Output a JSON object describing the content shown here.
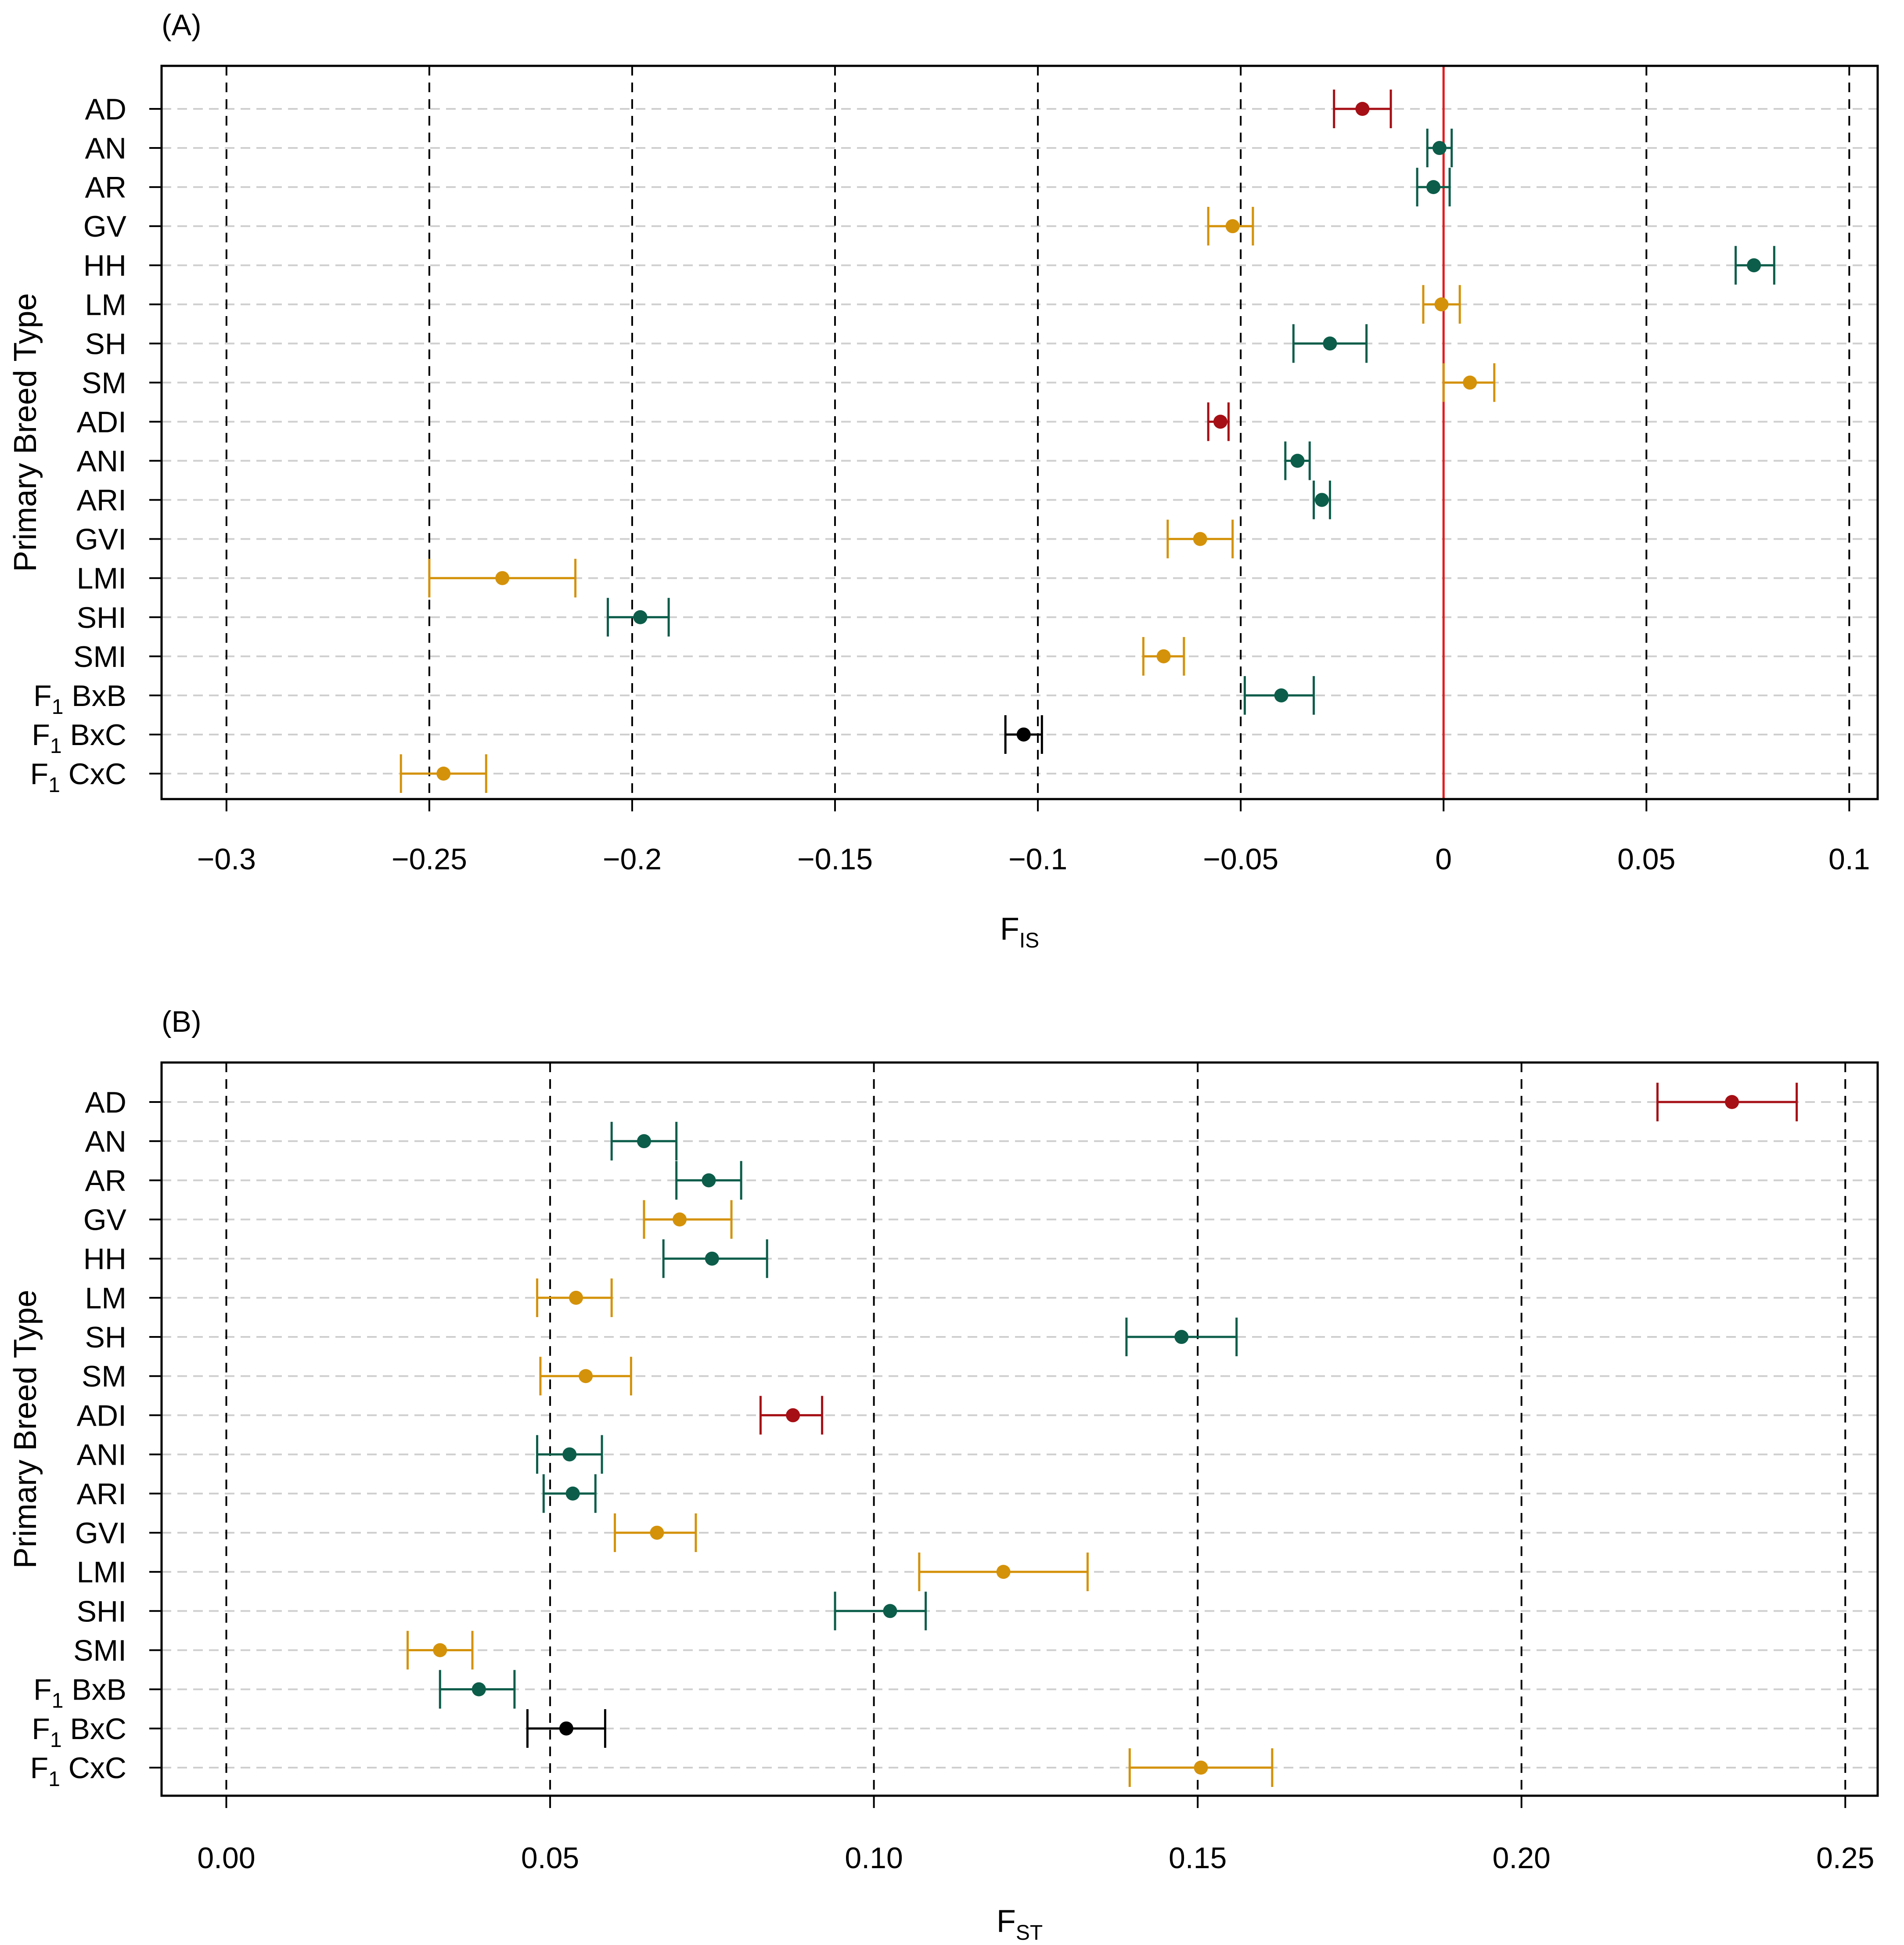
{
  "colors": {
    "red": "#A50F15",
    "green": "#0C5D4A",
    "orange": "#D4920A",
    "black": "#000000",
    "zero_line": "#E31A1C"
  },
  "chart_data": [
    {
      "type": "scatter",
      "panel_label": "(A)",
      "title": "",
      "xlabel": "F",
      "xlabel_sub": "IS",
      "ylabel": "Primary Breed Type",
      "xlim": [
        -0.316,
        0.107
      ],
      "xticks": [
        -0.3,
        -0.25,
        -0.2,
        -0.15,
        -0.1,
        -0.05,
        0,
        0.05,
        0.1
      ],
      "xtick_labels": [
        "−0.3",
        "−0.25",
        "−0.2",
        "−0.15",
        "−0.1",
        "−0.05",
        "0",
        "0.05",
        "0.1"
      ],
      "vertical_gridlines": "dashed at each tick",
      "horizontal_gridlines": "dashed light grey at each category",
      "reference_line": {
        "x": 0,
        "color": "red"
      },
      "points": [
        {
          "label": "AD",
          "sub": "",
          "rest": "",
          "x": -0.02,
          "lo": -0.027,
          "hi": -0.013,
          "group": "red"
        },
        {
          "label": "AN",
          "sub": "",
          "rest": "",
          "x": -0.001,
          "lo": -0.004,
          "hi": 0.002,
          "group": "green"
        },
        {
          "label": "AR",
          "sub": "",
          "rest": "",
          "x": -0.0025,
          "lo": -0.0065,
          "hi": 0.0015,
          "group": "green"
        },
        {
          "label": "GV",
          "sub": "",
          "rest": "",
          "x": -0.052,
          "lo": -0.058,
          "hi": -0.047,
          "group": "orange"
        },
        {
          "label": "HH",
          "sub": "",
          "rest": "",
          "x": 0.0765,
          "lo": 0.072,
          "hi": 0.0815,
          "group": "green"
        },
        {
          "label": "LM",
          "sub": "",
          "rest": "",
          "x": -0.0005,
          "lo": -0.005,
          "hi": 0.004,
          "group": "orange"
        },
        {
          "label": "SH",
          "sub": "",
          "rest": "",
          "x": -0.028,
          "lo": -0.037,
          "hi": -0.019,
          "group": "green"
        },
        {
          "label": "SM",
          "sub": "",
          "rest": "",
          "x": 0.0065,
          "lo": 0.0,
          "hi": 0.0125,
          "group": "orange"
        },
        {
          "label": "ADI",
          "sub": "",
          "rest": "",
          "x": -0.055,
          "lo": -0.058,
          "hi": -0.053,
          "group": "red"
        },
        {
          "label": "ANI",
          "sub": "",
          "rest": "",
          "x": -0.036,
          "lo": -0.039,
          "hi": -0.033,
          "group": "green"
        },
        {
          "label": "ARI",
          "sub": "",
          "rest": "",
          "x": -0.03,
          "lo": -0.032,
          "hi": -0.028,
          "group": "green"
        },
        {
          "label": "GVI",
          "sub": "",
          "rest": "",
          "x": -0.06,
          "lo": -0.068,
          "hi": -0.052,
          "group": "orange"
        },
        {
          "label": "LMI",
          "sub": "",
          "rest": "",
          "x": -0.232,
          "lo": -0.25,
          "hi": -0.214,
          "group": "orange"
        },
        {
          "label": "SHI",
          "sub": "",
          "rest": "",
          "x": -0.198,
          "lo": -0.206,
          "hi": -0.191,
          "group": "green"
        },
        {
          "label": "SMI",
          "sub": "",
          "rest": "",
          "x": -0.069,
          "lo": -0.074,
          "hi": -0.064,
          "group": "orange"
        },
        {
          "label": "F",
          "sub": "1",
          "rest": " BxB",
          "x": -0.04,
          "lo": -0.049,
          "hi": -0.032,
          "group": "green"
        },
        {
          "label": "F",
          "sub": "1",
          "rest": " BxC",
          "x": -0.1035,
          "lo": -0.108,
          "hi": -0.099,
          "group": "black"
        },
        {
          "label": "F",
          "sub": "1",
          "rest": " CxC",
          "x": -0.2465,
          "lo": -0.257,
          "hi": -0.236,
          "group": "orange"
        }
      ]
    },
    {
      "type": "scatter",
      "panel_label": "(B)",
      "title": "",
      "xlabel": "F",
      "xlabel_sub": "ST",
      "ylabel": "Primary Breed Type",
      "xlim": [
        -0.01,
        0.255
      ],
      "xticks": [
        0.0,
        0.05,
        0.1,
        0.15,
        0.2,
        0.25
      ],
      "xtick_labels": [
        "0.00",
        "0.05",
        "0.10",
        "0.15",
        "0.20",
        "0.25"
      ],
      "vertical_gridlines": "dashed at each tick",
      "horizontal_gridlines": "dashed light grey at each category",
      "reference_line": null,
      "points": [
        {
          "label": "AD",
          "sub": "",
          "rest": "",
          "x": 0.2325,
          "lo": 0.221,
          "hi": 0.2425,
          "group": "red"
        },
        {
          "label": "AN",
          "sub": "",
          "rest": "",
          "x": 0.0645,
          "lo": 0.0595,
          "hi": 0.0695,
          "group": "green"
        },
        {
          "label": "AR",
          "sub": "",
          "rest": "",
          "x": 0.0745,
          "lo": 0.0695,
          "hi": 0.0795,
          "group": "green"
        },
        {
          "label": "GV",
          "sub": "",
          "rest": "",
          "x": 0.07,
          "lo": 0.0645,
          "hi": 0.078,
          "group": "orange"
        },
        {
          "label": "HH",
          "sub": "",
          "rest": "",
          "x": 0.075,
          "lo": 0.0675,
          "hi": 0.0835,
          "group": "green"
        },
        {
          "label": "LM",
          "sub": "",
          "rest": "",
          "x": 0.054,
          "lo": 0.048,
          "hi": 0.0595,
          "group": "orange"
        },
        {
          "label": "SH",
          "sub": "",
          "rest": "",
          "x": 0.1475,
          "lo": 0.139,
          "hi": 0.156,
          "group": "green"
        },
        {
          "label": "SM",
          "sub": "",
          "rest": "",
          "x": 0.0555,
          "lo": 0.0485,
          "hi": 0.0625,
          "group": "orange"
        },
        {
          "label": "ADI",
          "sub": "",
          "rest": "",
          "x": 0.0875,
          "lo": 0.0825,
          "hi": 0.092,
          "group": "red"
        },
        {
          "label": "ANI",
          "sub": "",
          "rest": "",
          "x": 0.053,
          "lo": 0.048,
          "hi": 0.058,
          "group": "green"
        },
        {
          "label": "ARI",
          "sub": "",
          "rest": "",
          "x": 0.0535,
          "lo": 0.049,
          "hi": 0.057,
          "group": "green"
        },
        {
          "label": "GVI",
          "sub": "",
          "rest": "",
          "x": 0.0665,
          "lo": 0.06,
          "hi": 0.0725,
          "group": "orange"
        },
        {
          "label": "LMI",
          "sub": "",
          "rest": "",
          "x": 0.12,
          "lo": 0.107,
          "hi": 0.133,
          "group": "orange"
        },
        {
          "label": "SHI",
          "sub": "",
          "rest": "",
          "x": 0.1025,
          "lo": 0.094,
          "hi": 0.108,
          "group": "green"
        },
        {
          "label": "SMI",
          "sub": "",
          "rest": "",
          "x": 0.033,
          "lo": 0.028,
          "hi": 0.038,
          "group": "orange"
        },
        {
          "label": "F",
          "sub": "1",
          "rest": " BxB",
          "x": 0.039,
          "lo": 0.033,
          "hi": 0.0445,
          "group": "green"
        },
        {
          "label": "F",
          "sub": "1",
          "rest": " BxC",
          "x": 0.0525,
          "lo": 0.0465,
          "hi": 0.0585,
          "group": "black"
        },
        {
          "label": "F",
          "sub": "1",
          "rest": " CxC",
          "x": 0.1505,
          "lo": 0.1395,
          "hi": 0.1615,
          "group": "orange"
        }
      ]
    }
  ]
}
